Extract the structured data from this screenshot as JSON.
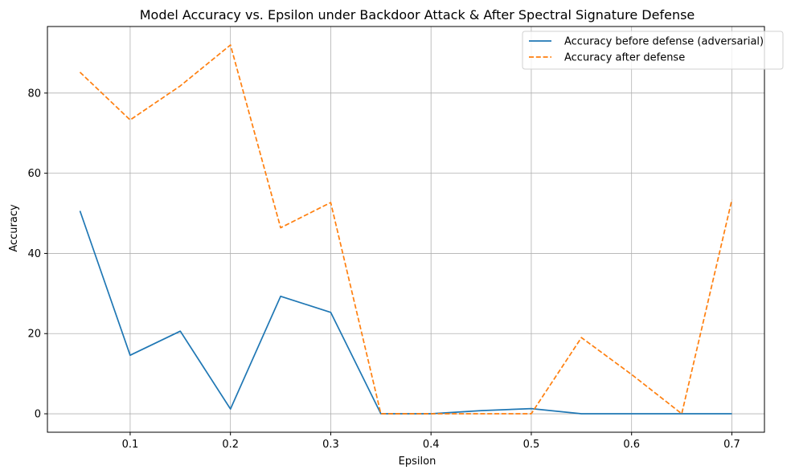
{
  "chart_data": {
    "type": "line",
    "title": "Model Accuracy vs. Epsilon under Backdoor Attack & After Spectral Signature Defense",
    "xlabel": "Epsilon",
    "ylabel": "Accuracy",
    "x": [
      0.05,
      0.1,
      0.15,
      0.2,
      0.25,
      0.3,
      0.35,
      0.4,
      0.45,
      0.5,
      0.55,
      0.6,
      0.65,
      0.7
    ],
    "xlim": [
      0.0175,
      0.7325
    ],
    "ylim": [
      -4.6,
      96.6
    ],
    "xticks": [
      0.1,
      0.2,
      0.3,
      0.4,
      0.5,
      0.6,
      0.7
    ],
    "yticks": [
      0,
      20,
      40,
      60,
      80
    ],
    "grid": true,
    "legend_position": "upper right",
    "series": [
      {
        "name": "Accuracy before defense (adversarial)",
        "color": "#1f77b4",
        "style": "solid",
        "values": [
          50.6,
          14.6,
          20.6,
          1.2,
          29.3,
          25.3,
          0,
          0,
          0.8,
          1.3,
          0,
          0,
          0,
          0
        ]
      },
      {
        "name": "Accuracy after defense",
        "color": "#ff7f0e",
        "style": "dashed",
        "values": [
          85.2,
          73.3,
          81.8,
          92.0,
          46.4,
          52.7,
          0,
          0,
          0,
          0,
          19.0,
          9.8,
          0,
          53.4
        ]
      }
    ]
  }
}
